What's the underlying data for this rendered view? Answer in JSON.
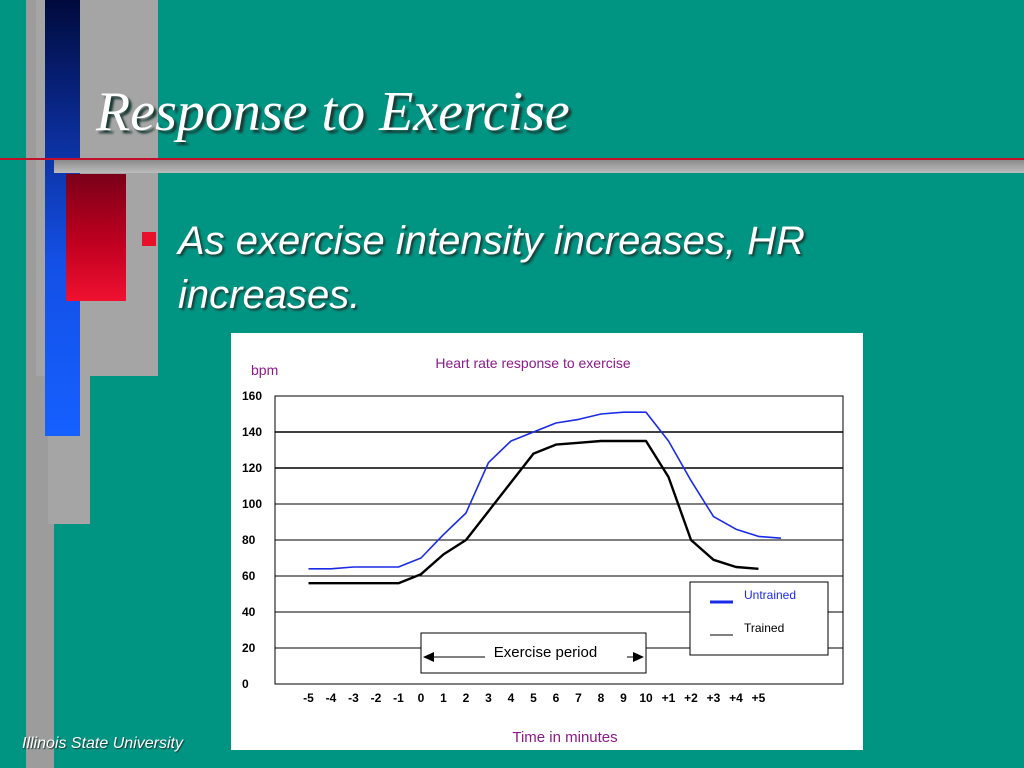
{
  "slide": {
    "title": "Response to Exercise",
    "bullet": "As exercise intensity increases, HR increases.",
    "footer": "Illinois State University",
    "colors": {
      "background": "#009483",
      "bullet": "#e8102a",
      "title_text": "#ffffff"
    }
  },
  "chart_data": {
    "type": "line",
    "title": "Heart rate response to exercise",
    "ylabel": "bpm",
    "xlabel": "Time in minutes",
    "ylim": [
      0,
      160
    ],
    "yticks": [
      160,
      140,
      120,
      100,
      80,
      60,
      40,
      20,
      0
    ],
    "x_tick_labels": [
      "-5",
      "-4",
      "-3",
      "-2",
      "-1",
      "0",
      "1",
      "2",
      "3",
      "4",
      "5",
      "6",
      "7",
      "8",
      "9",
      "10",
      "+1",
      "+2",
      "+3",
      "+4",
      "+5"
    ],
    "grid": true,
    "legend_position": "bottom-right",
    "annotation": "Exercise period",
    "series": [
      {
        "name": "Untrained",
        "color": "#1a2be8",
        "x": [
          -5,
          -4,
          -3,
          -2,
          -1,
          0,
          1,
          2,
          3,
          4,
          5,
          6,
          7,
          8,
          9,
          10,
          11,
          12,
          13,
          14,
          15,
          16
        ],
        "values": [
          64,
          64,
          65,
          65,
          65,
          70,
          83,
          95,
          123,
          135,
          140,
          145,
          147,
          150,
          151,
          151,
          135,
          113,
          93,
          86,
          82,
          81
        ]
      },
      {
        "name": "Trained",
        "color": "#000000",
        "x": [
          -5,
          -4,
          -3,
          -2,
          -1,
          0,
          1,
          2,
          3,
          4,
          5,
          6,
          7,
          8,
          9,
          10,
          11,
          12,
          13,
          14,
          15
        ],
        "values": [
          56,
          56,
          56,
          56,
          56,
          61,
          72,
          80,
          96,
          112,
          128,
          133,
          134,
          135,
          135,
          135,
          115,
          80,
          69,
          65,
          64
        ]
      }
    ]
  }
}
